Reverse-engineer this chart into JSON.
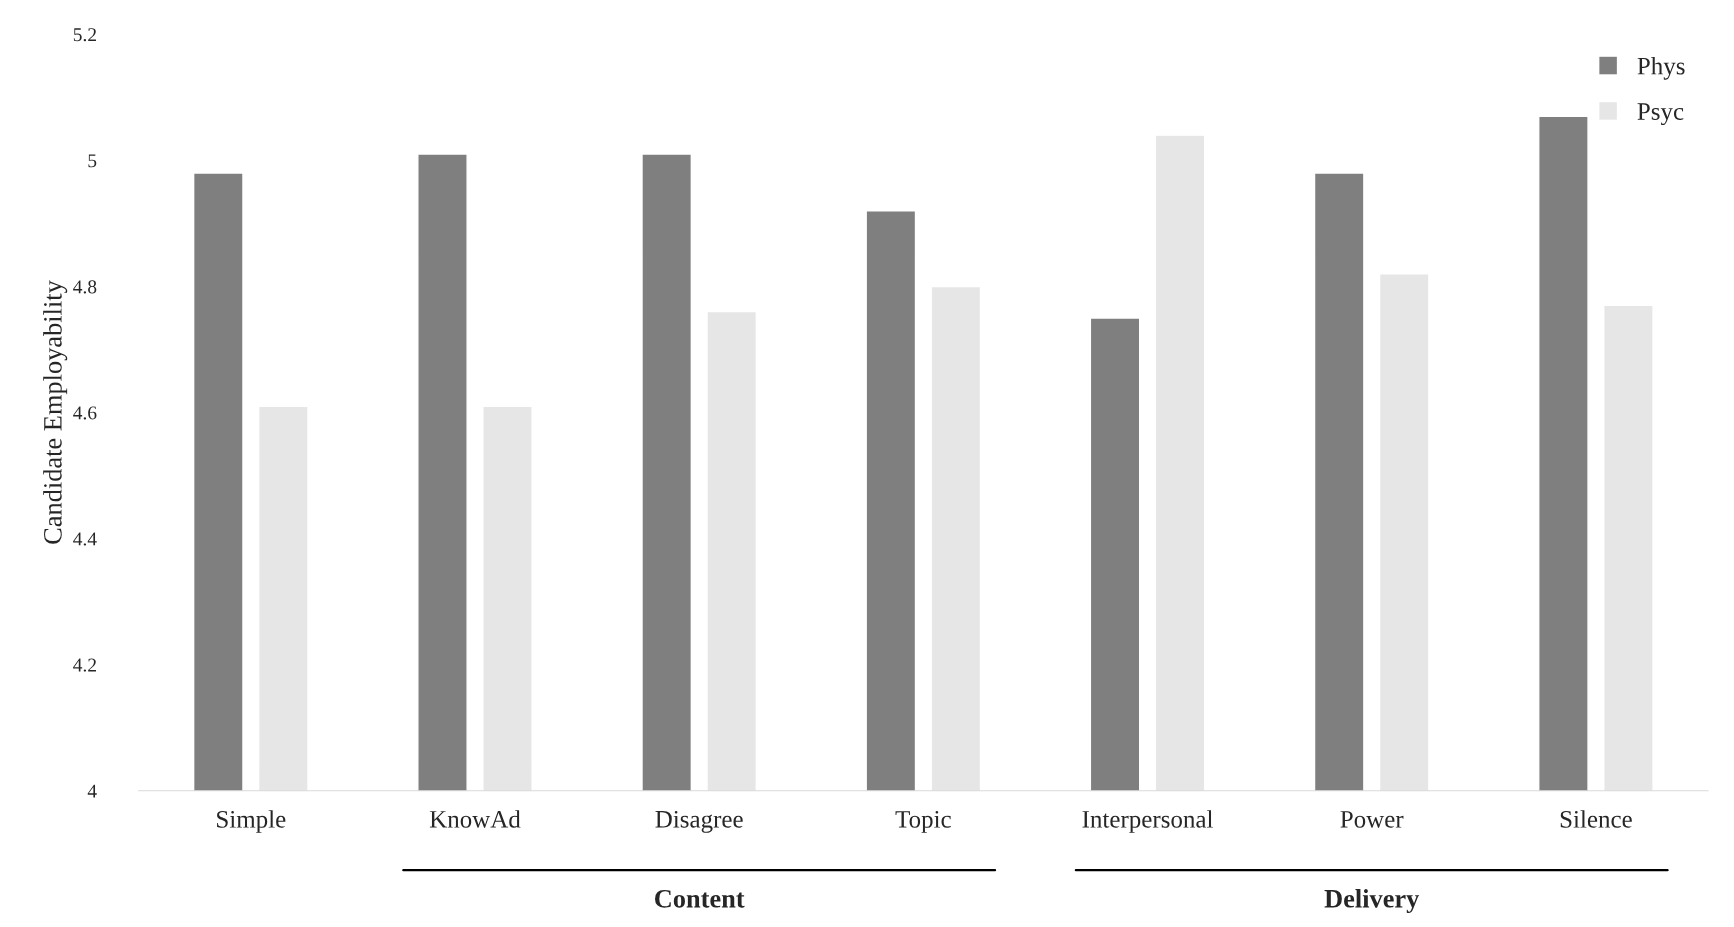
{
  "chart_data": {
    "type": "bar",
    "ylabel": "Candidate Employability",
    "categories": [
      "Simple",
      "KnowAd",
      "Disagree",
      "Topic",
      "Interpersonal",
      "Power",
      "Silence"
    ],
    "series": [
      {
        "name": "Phys",
        "color": "#7f7f7f",
        "values": [
          4.98,
          5.01,
          5.01,
          4.92,
          4.75,
          4.98,
          5.07
        ]
      },
      {
        "name": "Psyc",
        "color": "#e6e6e6",
        "values": [
          4.61,
          4.61,
          4.76,
          4.8,
          5.04,
          4.82,
          4.77
        ]
      }
    ],
    "ylim": [
      4,
      5.2
    ],
    "yticks": [
      4,
      4.2,
      4.4,
      4.6,
      4.8,
      5,
      5.2
    ],
    "annotations": [
      "Content",
      "Delivery"
    ],
    "grid": false,
    "legend": "top right"
  }
}
